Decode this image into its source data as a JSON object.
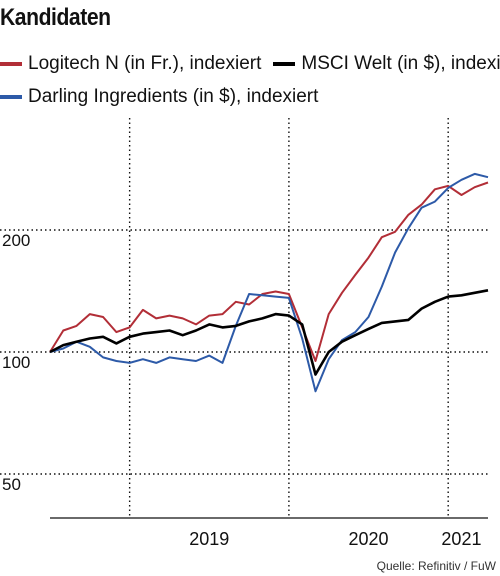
{
  "header": {
    "title": "Kandidaten"
  },
  "legend": [
    {
      "label": "Logitech N (in Fr.), indexiert",
      "color": "#b22e37"
    },
    {
      "label": "MSCI Welt (in $), indexiert",
      "color": "#000000"
    },
    {
      "label": "Darling Ingredients (in $), indexiert",
      "color": "#2d5aa8"
    }
  ],
  "source": "Quelle: Refinitiv / FuW",
  "chart_data": {
    "type": "line",
    "y_scale": "log",
    "ylim": [
      50,
      300
    ],
    "yticks": [
      50,
      100,
      200
    ],
    "x_range": [
      "2018-07",
      "2021-04"
    ],
    "xticks": [
      {
        "label": "2019",
        "date": "2019-07"
      },
      {
        "label": "2020",
        "date": "2020-07"
      },
      {
        "label": "2021",
        "date": "2021-02"
      }
    ],
    "grid": "dotted",
    "legend_position": "top",
    "x": [
      "2018-07",
      "2018-08",
      "2018-09",
      "2018-10",
      "2018-11",
      "2018-12",
      "2019-01",
      "2019-02",
      "2019-03",
      "2019-04",
      "2019-05",
      "2019-06",
      "2019-07",
      "2019-08",
      "2019-09",
      "2019-10",
      "2019-11",
      "2019-12",
      "2020-01",
      "2020-02",
      "2020-03",
      "2020-04",
      "2020-05",
      "2020-06",
      "2020-07",
      "2020-08",
      "2020-09",
      "2020-10",
      "2020-11",
      "2020-12",
      "2021-01",
      "2021-02",
      "2021-03",
      "2021-04"
    ],
    "series": [
      {
        "name": "Logitech N (in Fr.), indexiert",
        "color": "#b22e37",
        "values": [
          100,
          113,
          116,
          124,
          122,
          112,
          115,
          127,
          121,
          123,
          121,
          117,
          123,
          124,
          133,
          131,
          139,
          141,
          139,
          115,
          95,
          124,
          140,
          155,
          171,
          192,
          198,
          218,
          231,
          252,
          257,
          244,
          255,
          262
        ]
      },
      {
        "name": "MSCI Welt (in $), indexiert",
        "color": "#000000",
        "values": [
          100,
          104,
          106,
          108,
          109,
          105,
          109,
          111,
          112,
          113,
          110,
          113,
          117,
          115,
          116,
          119,
          121,
          124,
          123,
          117,
          88,
          100,
          106,
          110,
          114,
          118,
          119,
          120,
          128,
          133,
          137,
          138,
          140,
          142
        ]
      },
      {
        "name": "Darling Ingredients (in $), indexiert",
        "color": "#2d5aa8",
        "values": [
          100,
          102,
          106,
          103,
          97,
          95,
          94,
          96,
          94,
          97,
          96,
          95,
          98,
          94,
          116,
          139,
          138,
          137,
          136,
          108,
          80,
          96,
          107,
          112,
          122,
          145,
          176,
          202,
          227,
          235,
          254,
          266,
          275,
          270
        ]
      }
    ]
  }
}
